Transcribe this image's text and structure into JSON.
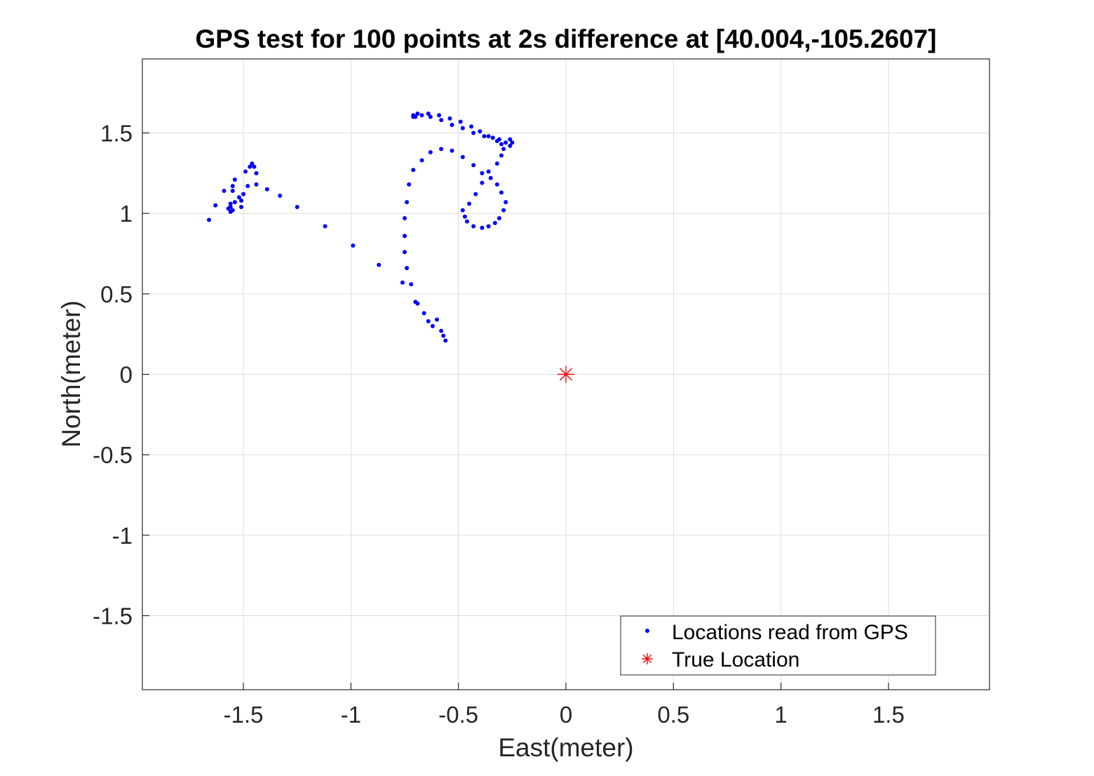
{
  "chart_data": {
    "type": "scatter",
    "title": "GPS test for 100 points at 2s difference at [40.004,-105.2607]",
    "xlabel": "East(meter)",
    "ylabel": "North(meter)",
    "xlim": [
      -1.97,
      1.97
    ],
    "ylim": [
      -1.96,
      1.96
    ],
    "xticks": [
      -1.5,
      -1,
      -0.5,
      0,
      0.5,
      1,
      1.5
    ],
    "yticks": [
      -1.5,
      -1,
      -0.5,
      0,
      0.5,
      1,
      1.5
    ],
    "xtick_labels": [
      "-1.5",
      "-1",
      "-0.5",
      "0",
      "0.5",
      "1",
      "1.5"
    ],
    "ytick_labels": [
      "-1.5",
      "-1",
      "-0.5",
      "0",
      "0.5",
      "1",
      "1.5"
    ],
    "grid": true,
    "legend_position": "bottom-right",
    "series": [
      {
        "name": "Locations read from GPS",
        "marker": "dot",
        "color": "#0000ff",
        "x": [
          -1.66,
          -1.63,
          -1.59,
          -1.57,
          -1.56,
          -1.56,
          -1.55,
          -1.55,
          -1.56,
          -1.55,
          -1.54,
          -1.54,
          -1.52,
          -1.49,
          -1.47,
          -1.46,
          -1.44,
          -1.44,
          -1.48,
          -1.5,
          -1.51,
          -1.51,
          -1.45,
          -1.39,
          -1.33,
          -1.25,
          -1.12,
          -0.99,
          -0.87,
          -0.76,
          -0.72,
          -0.74,
          -0.75,
          -0.75,
          -0.75,
          -0.74,
          -0.73,
          -0.71,
          -0.67,
          -0.63,
          -0.58,
          -0.53,
          -0.48,
          -0.43,
          -0.39,
          -0.35,
          -0.32,
          -0.3,
          -0.28,
          -0.29,
          -0.31,
          -0.33,
          -0.36,
          -0.39,
          -0.43,
          -0.46,
          -0.47,
          -0.48,
          -0.45,
          -0.42,
          -0.39,
          -0.36,
          -0.32,
          -0.3,
          -0.29,
          -0.3,
          -0.32,
          -0.36,
          -0.4,
          -0.44,
          -0.49,
          -0.54,
          -0.59,
          -0.64,
          -0.69,
          -0.71,
          -0.71,
          -0.7,
          -0.67,
          -0.63,
          -0.58,
          -0.53,
          -0.48,
          -0.43,
          -0.38,
          -0.34,
          -0.31,
          -0.28,
          -0.26,
          -0.25,
          -0.26,
          -0.7,
          -0.69,
          -0.66,
          -0.64,
          -0.62,
          -0.6,
          -0.58,
          -0.57,
          -0.56
        ],
        "y": [
          0.96,
          1.05,
          1.14,
          1.03,
          1.01,
          1.06,
          1.02,
          1.14,
          1.04,
          1.17,
          1.07,
          1.21,
          1.1,
          1.26,
          1.29,
          1.31,
          1.25,
          1.18,
          1.17,
          1.12,
          1.08,
          1.04,
          1.29,
          1.15,
          1.11,
          1.04,
          0.92,
          0.8,
          0.68,
          0.57,
          0.56,
          0.66,
          0.76,
          0.86,
          0.97,
          1.07,
          1.18,
          1.27,
          1.33,
          1.38,
          1.4,
          1.39,
          1.35,
          1.3,
          1.25,
          1.22,
          1.18,
          1.13,
          1.07,
          1.02,
          0.97,
          0.94,
          0.92,
          0.91,
          0.92,
          0.95,
          0.98,
          1.02,
          1.06,
          1.12,
          1.19,
          1.26,
          1.31,
          1.36,
          1.4,
          1.43,
          1.45,
          1.48,
          1.51,
          1.54,
          1.57,
          1.59,
          1.61,
          1.62,
          1.62,
          1.6,
          1.61,
          1.6,
          1.61,
          1.6,
          1.58,
          1.55,
          1.53,
          1.5,
          1.48,
          1.47,
          1.46,
          1.44,
          1.42,
          1.44,
          1.46,
          0.45,
          0.44,
          0.38,
          0.33,
          0.3,
          0.34,
          0.27,
          0.24,
          0.21
        ]
      },
      {
        "name": "True Location",
        "marker": "asterisk",
        "color": "#ff0000",
        "x": [
          0
        ],
        "y": [
          0
        ]
      }
    ]
  }
}
